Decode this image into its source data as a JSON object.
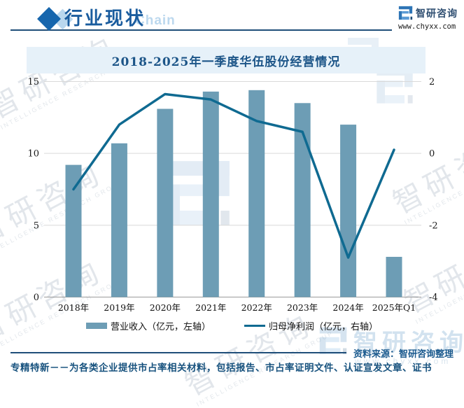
{
  "header": {
    "section_title": "行业现状",
    "overlay_watermark": "Chain",
    "brand_name": "智研咨询",
    "brand_url": "www.chyxx.com"
  },
  "chart_data": {
    "type": "bar+line combo",
    "title": "2018-2025年一季度华伍股份经营情况",
    "categories": [
      "2018年",
      "2019年",
      "2020年",
      "2021年",
      "2022年",
      "2023年",
      "2024年",
      "2025年Q1"
    ],
    "series": [
      {
        "name": "营业收入（亿元，左轴）",
        "type": "bar",
        "axis": "left",
        "color": "#6d9db5",
        "values": [
          9.2,
          10.7,
          13.1,
          14.3,
          14.4,
          13.5,
          12.0,
          2.8
        ]
      },
      {
        "name": "归母净利润（亿元，右轴）",
        "type": "line",
        "axis": "right",
        "color": "#0f6a91",
        "values": [
          -1.0,
          0.8,
          1.65,
          1.5,
          0.9,
          0.6,
          -2.9,
          0.1
        ]
      }
    ],
    "left_axis": {
      "min": 0,
      "max": 15,
      "ticks": [
        0,
        5,
        10,
        15
      ]
    },
    "right_axis": {
      "min": -4,
      "max": 2,
      "ticks": [
        -4,
        -2,
        0,
        2
      ]
    },
    "grid": true,
    "legend_position": "bottom"
  },
  "footer": {
    "source": "资料来源：智研咨询整理",
    "note": "专精特新－－为各类企业提供市占率相关材料，包括报告、市占率证明文件、认证宣发文章、证书"
  },
  "watermarks": {
    "brand_cn": "智研咨询",
    "brand_sub": "INTELLIGENCE RESEARCH GROUP",
    "brand_url": "www.chyxx.com"
  },
  "colors": {
    "accent_blue": "#1a5c9e",
    "bar": "#6d9db5",
    "line": "#0f6a91",
    "title_band_bg": "#e6f1f9",
    "title_text": "#1c5588",
    "footer_text": "#17527e"
  }
}
